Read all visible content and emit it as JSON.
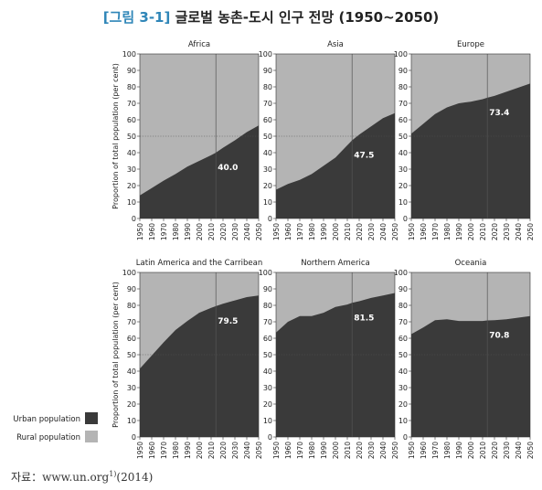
{
  "figure": {
    "tag": "[그림 3-1]",
    "title": "글로벌 농촌-도시 인구 전망 (1950~2050)",
    "source_prefix": "자료：www.un.org",
    "source_sup": "1)",
    "source_suffix": "(2014)"
  },
  "legend": {
    "items": [
      {
        "label": "Urban population",
        "color": "#3a3a3a"
      },
      {
        "label": "Rural population",
        "color": "#b4b4b4"
      }
    ]
  },
  "colors": {
    "urban": "#3a3a3a",
    "rural": "#b4b4b4"
  },
  "chart_data": [
    {
      "type": "area",
      "title": "Africa",
      "ylabel": "Proportion of total population (per cent)",
      "x": [
        1950,
        1960,
        1970,
        1980,
        1990,
        2000,
        2010,
        2014,
        2020,
        2030,
        2040,
        2050
      ],
      "urban": [
        14,
        18.5,
        23,
        27,
        31.5,
        35,
        38.5,
        40,
        43,
        47.5,
        52.5,
        56.5
      ],
      "annotation": {
        "year": 2014,
        "label": "40.0"
      },
      "ylim": [
        0,
        100
      ],
      "xlim": [
        1950,
        2050
      ],
      "reference_y": 50
    },
    {
      "type": "area",
      "title": "Asia",
      "ylabel": "",
      "x": [
        1950,
        1960,
        1970,
        1980,
        1990,
        2000,
        2010,
        2014,
        2020,
        2030,
        2040,
        2050
      ],
      "urban": [
        17.5,
        21,
        23.5,
        27,
        32,
        37,
        44.5,
        47.5,
        51,
        56,
        61,
        64
      ],
      "annotation": {
        "year": 2014,
        "label": "47.5"
      },
      "ylim": [
        0,
        100
      ],
      "xlim": [
        1950,
        2050
      ],
      "reference_y": 50
    },
    {
      "type": "area",
      "title": "Europe",
      "ylabel": "",
      "x": [
        1950,
        1960,
        1970,
        1980,
        1990,
        2000,
        2010,
        2014,
        2020,
        2030,
        2040,
        2050
      ],
      "urban": [
        51.5,
        57.5,
        63.5,
        67.5,
        70,
        71,
        72.5,
        73.4,
        74.5,
        77,
        79.5,
        82
      ],
      "annotation": {
        "year": 2014,
        "label": "73.4"
      },
      "ylim": [
        0,
        100
      ],
      "xlim": [
        1950,
        2050
      ],
      "reference_y": 50
    },
    {
      "type": "area",
      "title": "Latin America and the Carribean",
      "ylabel": "Proportion of total population (per cent)",
      "x": [
        1950,
        1960,
        1970,
        1980,
        1990,
        2000,
        2010,
        2014,
        2020,
        2030,
        2040,
        2050
      ],
      "urban": [
        41.5,
        49.5,
        57.5,
        65,
        70.5,
        75.5,
        78.5,
        79.5,
        81,
        83,
        85,
        86
      ],
      "annotation": {
        "year": 2014,
        "label": "79.5"
      },
      "ylim": [
        0,
        100
      ],
      "xlim": [
        1950,
        2050
      ],
      "reference_y": 50
    },
    {
      "type": "area",
      "title": "Northern America",
      "ylabel": "",
      "x": [
        1950,
        1960,
        1970,
        1980,
        1990,
        2000,
        2010,
        2014,
        2020,
        2030,
        2040,
        2050
      ],
      "urban": [
        63.5,
        70,
        73.5,
        73.5,
        75.5,
        79,
        80.5,
        81.5,
        82.5,
        84.5,
        86,
        87.5
      ],
      "annotation": {
        "year": 2014,
        "label": "81.5"
      },
      "ylim": [
        0,
        100
      ],
      "xlim": [
        1950,
        2050
      ],
      "reference_y": 50
    },
    {
      "type": "area",
      "title": "Oceania",
      "ylabel": "",
      "x": [
        1950,
        1960,
        1970,
        1980,
        1990,
        2000,
        2010,
        2014,
        2020,
        2030,
        2040,
        2050
      ],
      "urban": [
        62.5,
        66.5,
        71,
        71.5,
        70.5,
        70.5,
        70.5,
        70.8,
        71,
        71.5,
        72.5,
        73.5
      ],
      "annotation": {
        "year": 2014,
        "label": "70.8"
      },
      "ylim": [
        0,
        100
      ],
      "xlim": [
        1950,
        2050
      ],
      "reference_y": 50
    }
  ]
}
